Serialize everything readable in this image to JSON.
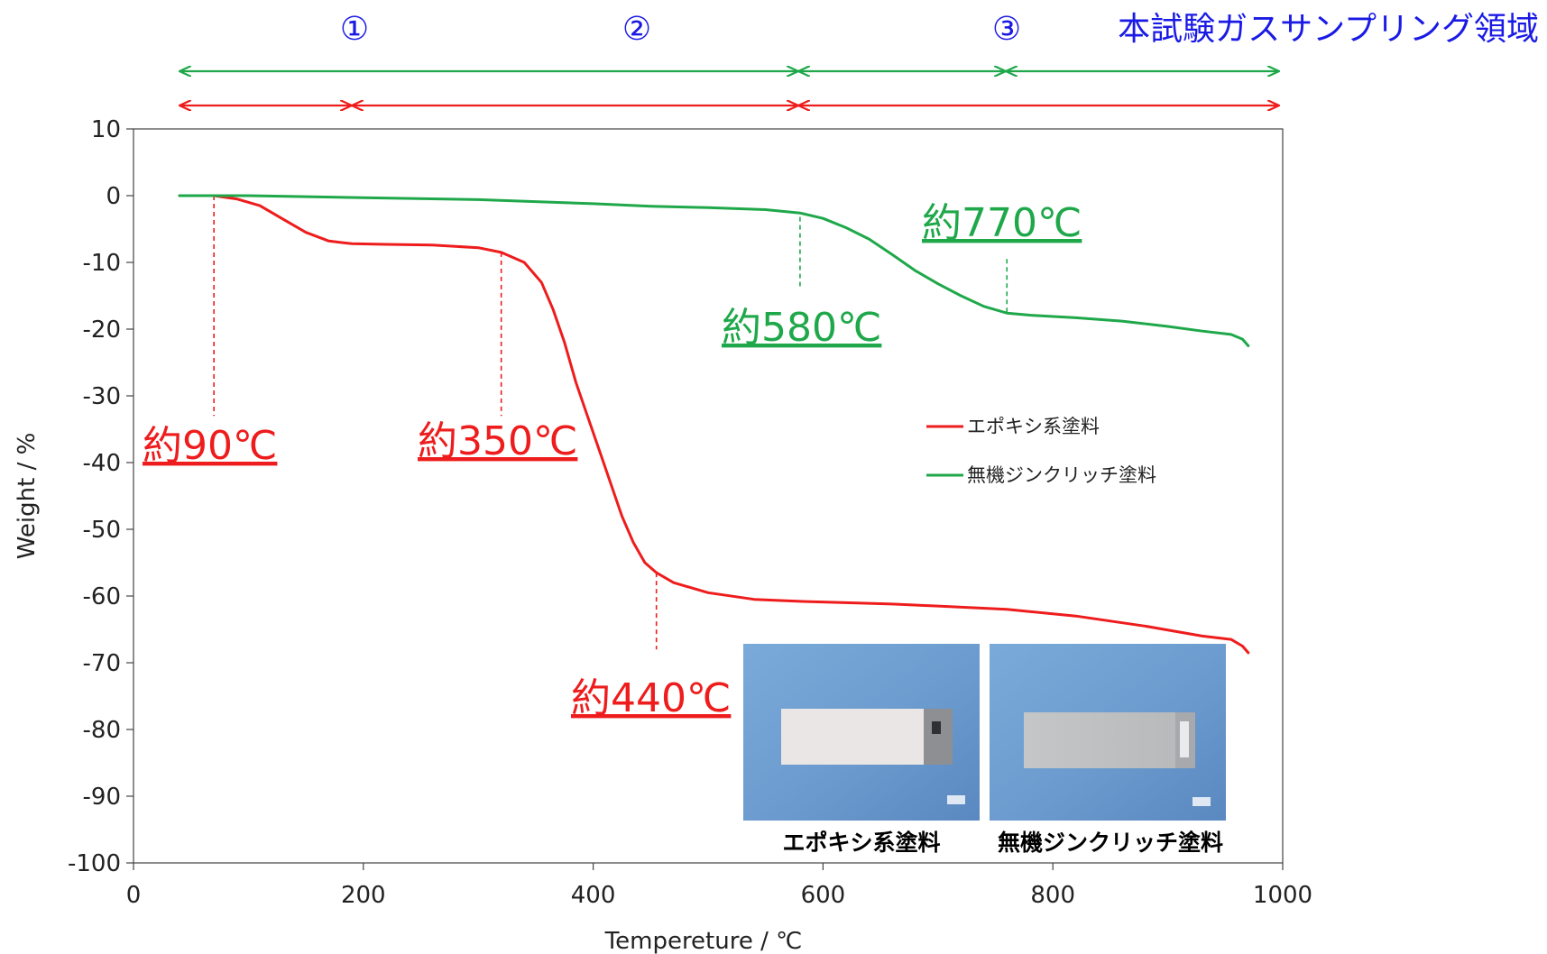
{
  "colors": {
    "epoxy": "#ee1c1c",
    "zinc": "#1fa84a",
    "region": "#1a1ae6",
    "photo_bg": "#6f9fd0",
    "photo_bg_dark": "#4f7fb6"
  },
  "regions": {
    "r1": "①",
    "r2": "②",
    "r3": "③",
    "gas_sampling": "本試験ガスサンプリング領域"
  },
  "photos": {
    "epoxy_label": "エポキシ系塗料",
    "zinc_label": "無機ジンクリッチ塗料"
  },
  "chart_data": {
    "type": "line",
    "title": "",
    "xlabel": "Tempereture / ℃",
    "ylabel": "Weight / %",
    "xlim": [
      0,
      1000
    ],
    "ylim": [
      -100,
      10
    ],
    "xticks": [
      0,
      200,
      400,
      600,
      800,
      1000
    ],
    "yticks": [
      10,
      0,
      -10,
      -20,
      -30,
      -40,
      -50,
      -60,
      -70,
      -80,
      -90,
      -100
    ],
    "legend_position": "center-right",
    "series": [
      {
        "name": "エポキシ系塗料",
        "color": "#ee1c1c",
        "x": [
          40,
          70,
          90,
          110,
          130,
          150,
          170,
          190,
          220,
          260,
          300,
          320,
          340,
          355,
          365,
          375,
          385,
          395,
          405,
          415,
          425,
          435,
          445,
          455,
          470,
          500,
          540,
          580,
          620,
          660,
          700,
          760,
          820,
          880,
          930,
          955,
          965,
          970
        ],
        "y": [
          0,
          0,
          -0.5,
          -1.5,
          -3.5,
          -5.5,
          -6.8,
          -7.2,
          -7.3,
          -7.4,
          -7.8,
          -8.5,
          -10,
          -13,
          -17,
          -22,
          -28,
          -33,
          -38,
          -43,
          -48,
          -52,
          -55,
          -56.5,
          -58,
          -59.5,
          -60.5,
          -60.8,
          -61,
          -61.2,
          -61.5,
          -62,
          -63,
          -64.5,
          -66,
          -66.5,
          -67.5,
          -68.5
        ]
      },
      {
        "name": "無機ジンクリッチ塗料",
        "color": "#1fa84a",
        "x": [
          40,
          100,
          200,
          300,
          400,
          450,
          500,
          550,
          580,
          600,
          620,
          640,
          660,
          680,
          700,
          720,
          740,
          760,
          780,
          820,
          860,
          900,
          930,
          955,
          965,
          970
        ],
        "y": [
          0,
          0,
          -0.3,
          -0.6,
          -1.2,
          -1.6,
          -1.8,
          -2.1,
          -2.6,
          -3.4,
          -4.8,
          -6.5,
          -8.8,
          -11.2,
          -13.2,
          -15,
          -16.6,
          -17.6,
          -17.9,
          -18.3,
          -18.8,
          -19.6,
          -20.3,
          -20.8,
          -21.5,
          -22.5
        ]
      }
    ],
    "annotations": [
      {
        "text": "約90℃",
        "x": 70,
        "series": "エポキシ系塗料"
      },
      {
        "text": "約350℃",
        "x": 320,
        "series": "エポキシ系塗料"
      },
      {
        "text": "約440℃",
        "x": 455,
        "series": "エポキシ系塗料"
      },
      {
        "text": "約580℃",
        "x": 580,
        "series": "無機ジンクリッチ塗料"
      },
      {
        "text": "約770℃",
        "x": 760,
        "series": "無機ジンクリッチ塗料"
      }
    ]
  }
}
